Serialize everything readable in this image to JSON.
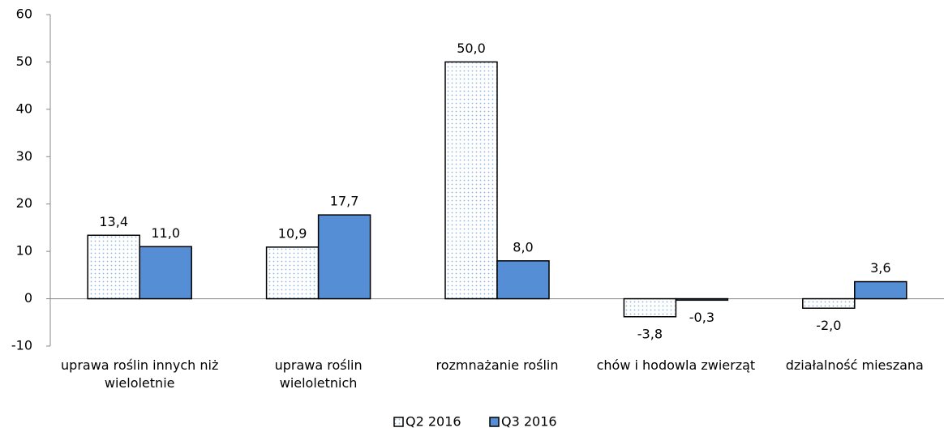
{
  "chart_data": {
    "type": "bar",
    "categories": [
      "uprawa roślin innych niż wieloletnie",
      "uprawa roślin wieloletnich",
      "rozmnażanie roślin",
      "chów i hodowla zwierząt",
      "działalność mieszana"
    ],
    "series": [
      {
        "name": "Q2 2016",
        "color": "#8db4e2",
        "pattern": "dots",
        "values": [
          13.4,
          10.9,
          50.0,
          -3.8,
          -2.0
        ],
        "value_labels": [
          "13,4",
          "10,9",
          "50,0",
          "-3,8",
          "-2,0"
        ]
      },
      {
        "name": "Q3 2016",
        "color": "#558ed5",
        "values": [
          11.0,
          17.7,
          8.0,
          -0.3,
          3.6
        ],
        "value_labels": [
          "11,0",
          "17,7",
          "8,0",
          "-0,3",
          "3,6"
        ]
      }
    ],
    "ylim": [
      -10,
      60
    ],
    "yticks": [
      -10,
      0,
      10,
      20,
      30,
      40,
      50,
      60
    ],
    "legend": "bottom"
  }
}
